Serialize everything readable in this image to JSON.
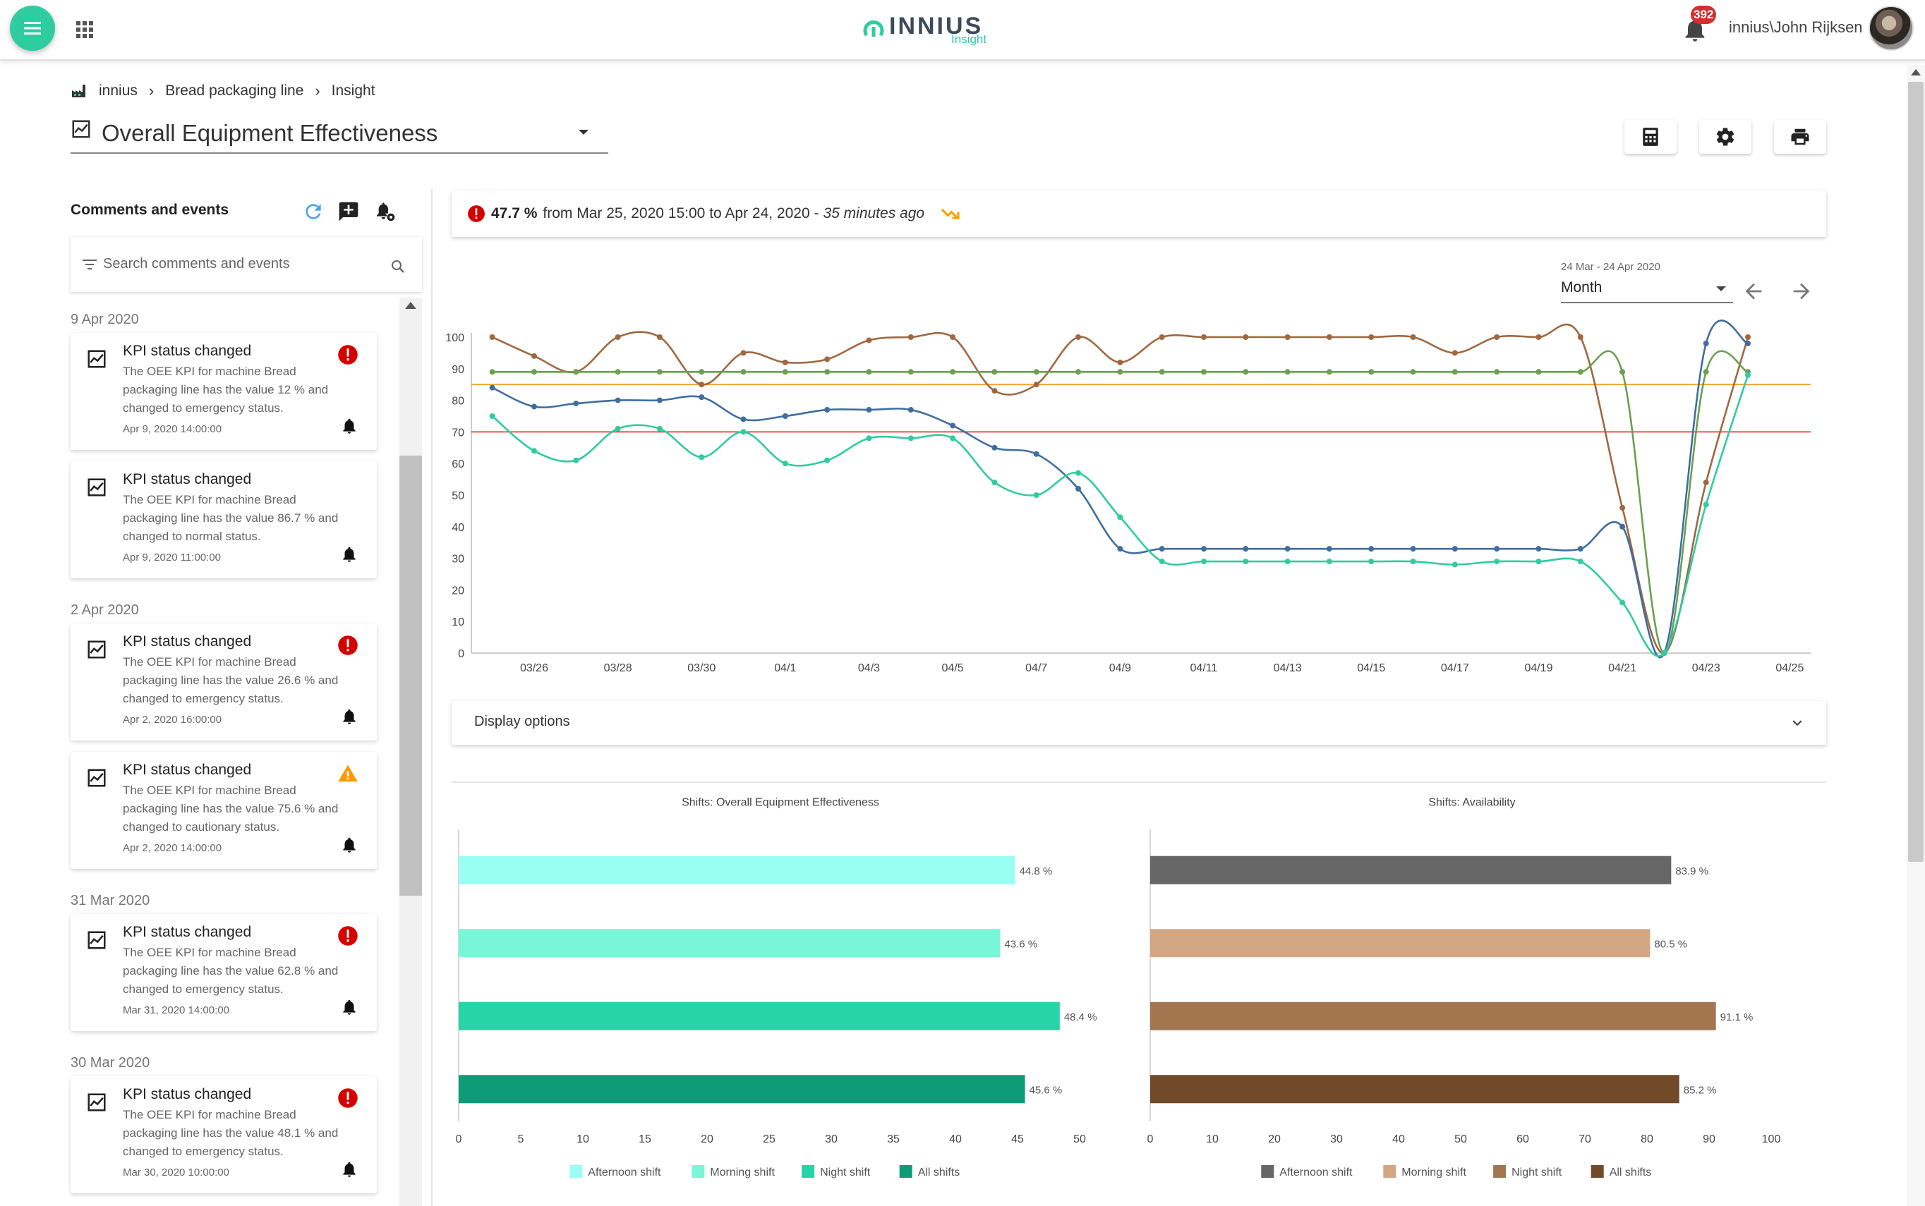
{
  "app": {
    "logo_text": "INNIUS",
    "logo_sub": "Insight",
    "notification_count": "392",
    "user": "innius\\John Rijksen"
  },
  "breadcrumb": [
    "innius",
    "Bread packaging line",
    "Insight"
  ],
  "page": {
    "title": "Overall Equipment Effectiveness"
  },
  "icons": {
    "menu": "menu-icon",
    "apps": "apps-grid-icon",
    "notifications": "bell-icon",
    "calculator": "calculator-icon",
    "settings": "gear-icon",
    "print": "printer-icon",
    "refresh": "refresh-icon",
    "add_comment": "add-comment-icon",
    "notification_settings": "bell-settings-icon",
    "filter": "filter-icon",
    "search": "search-icon",
    "event_chart": "chart-line-icon",
    "emergency": "error-circle-icon",
    "cautionary": "warning-triangle-icon",
    "trend": "trending-down-icon"
  },
  "colors": {
    "accent": "#2ecc9f",
    "emergency": "#d50000",
    "cautionary": "#ff9800",
    "trend": "#ffa000"
  },
  "comments": {
    "title": "Comments and events",
    "search_placeholder": "Search comments and events",
    "groups": [
      {
        "date": "9 Apr 2020",
        "events": [
          {
            "title": "KPI status changed",
            "text": "The OEE KPI for machine Bread packaging line has the value 12 % and changed to emergency status.",
            "timestamp": "Apr 9, 2020 14:00:00",
            "status": "emergency"
          },
          {
            "title": "KPI status changed",
            "text": "The OEE KPI for machine Bread packaging line has the value 86.7 % and changed to normal status.",
            "timestamp": "Apr 9, 2020 11:00:00",
            "status": "normal"
          }
        ]
      },
      {
        "date": "2 Apr 2020",
        "events": [
          {
            "title": "KPI status changed",
            "text": "The OEE KPI for machine Bread packaging line has the value 26.6 % and changed to emergency status.",
            "timestamp": "Apr 2, 2020 16:00:00",
            "status": "emergency"
          },
          {
            "title": "KPI status changed",
            "text": "The OEE KPI for machine Bread packaging line has the value 75.6 % and changed to cautionary status.",
            "timestamp": "Apr 2, 2020 14:00:00",
            "status": "cautionary"
          }
        ]
      },
      {
        "date": "31 Mar 2020",
        "events": [
          {
            "title": "KPI status changed",
            "text": "The OEE KPI for machine Bread packaging line has the value 62.8 % and changed to emergency status.",
            "timestamp": "Mar 31, 2020 14:00:00",
            "status": "emergency"
          }
        ]
      },
      {
        "date": "30 Mar 2020",
        "events": [
          {
            "title": "KPI status changed",
            "text": "The OEE KPI for machine Bread packaging line has the value 48.1 % and changed to emergency status.",
            "timestamp": "Mar 30, 2020 10:00:00",
            "status": "emergency"
          }
        ]
      }
    ]
  },
  "kpi": {
    "value": "47.7 %",
    "from_text": "from Mar 25, 2020 15:00 to Apr 24, 2020 -",
    "ago": "35 minutes ago"
  },
  "period": {
    "range": "24 Mar - 24 Apr 2020",
    "selected": "Month"
  },
  "display_options_label": "Display options",
  "chart_data": [
    {
      "type": "line",
      "ylim": [
        0,
        100
      ],
      "yticks": [
        0,
        10,
        20,
        30,
        40,
        50,
        60,
        70,
        80,
        90,
        100
      ],
      "x_day_range": [
        -1.5,
        30.5
      ],
      "x_ticks": [
        {
          "label": "03/26",
          "day": 0
        },
        {
          "label": "03/28",
          "day": 2
        },
        {
          "label": "03/30",
          "day": 4
        },
        {
          "label": "04/1",
          "day": 6
        },
        {
          "label": "04/3",
          "day": 8
        },
        {
          "label": "04/5",
          "day": 10
        },
        {
          "label": "04/7",
          "day": 12
        },
        {
          "label": "04/9",
          "day": 14
        },
        {
          "label": "04/11",
          "day": 16
        },
        {
          "label": "04/13",
          "day": 18
        },
        {
          "label": "04/15",
          "day": 20
        },
        {
          "label": "04/17",
          "day": 22
        },
        {
          "label": "04/19",
          "day": 24
        },
        {
          "label": "04/21",
          "day": 26
        },
        {
          "label": "04/23",
          "day": 28
        },
        {
          "label": "04/25",
          "day": 30
        }
      ],
      "reference_lines": [
        {
          "value": 85,
          "color": "#f0a030"
        },
        {
          "value": 70,
          "color": "#e53935"
        }
      ],
      "series": [
        {
          "color": "#a06840",
          "x": [
            -1,
            0,
            1,
            2,
            3,
            4,
            5,
            6,
            7,
            8,
            9,
            10,
            11,
            12,
            13,
            14,
            15,
            16,
            17,
            18,
            19,
            20,
            21,
            22,
            23,
            24,
            25,
            26,
            27,
            28,
            29
          ],
          "y": [
            100,
            94,
            89,
            100,
            100,
            85,
            95,
            92,
            93,
            99,
            100,
            100,
            83,
            85,
            100,
            92,
            100,
            100,
            100,
            100,
            100,
            100,
            100,
            95,
            100,
            100,
            100,
            46,
            0,
            54,
            100
          ]
        },
        {
          "color": "#6aa050",
          "x": [
            -1,
            0,
            1,
            2,
            3,
            4,
            5,
            6,
            7,
            8,
            9,
            10,
            11,
            12,
            13,
            14,
            15,
            16,
            17,
            18,
            19,
            20,
            21,
            22,
            23,
            24,
            25,
            26,
            27,
            28,
            29
          ],
          "y": [
            89,
            89,
            89,
            89,
            89,
            89,
            89,
            89,
            89,
            89,
            89,
            89,
            89,
            89,
            89,
            89,
            89,
            89,
            89,
            89,
            89,
            89,
            89,
            89,
            89,
            89,
            89,
            89,
            0,
            89,
            89
          ]
        },
        {
          "color": "#3f6e9e",
          "x": [
            -1,
            0,
            1,
            2,
            3,
            4,
            5,
            6,
            7,
            8,
            9,
            10,
            11,
            12,
            13,
            14,
            15,
            16,
            17,
            18,
            19,
            20,
            21,
            22,
            23,
            24,
            25,
            26,
            27,
            28,
            29
          ],
          "y": [
            84,
            78,
            79,
            80,
            80,
            81,
            74,
            75,
            77,
            77,
            77,
            72,
            65,
            63,
            52,
            33,
            33,
            33,
            33,
            33,
            33,
            33,
            33,
            33,
            33,
            33,
            33,
            40,
            0,
            98,
            98
          ]
        },
        {
          "color": "#2ecc9f",
          "x": [
            -1,
            0,
            1,
            2,
            3,
            4,
            5,
            6,
            7,
            8,
            9,
            10,
            11,
            12,
            13,
            14,
            15,
            16,
            17,
            18,
            19,
            20,
            21,
            22,
            23,
            24,
            25,
            26,
            27,
            28,
            29
          ],
          "y": [
            75,
            64,
            61,
            71,
            71,
            62,
            70,
            60,
            61,
            68,
            68,
            68,
            54,
            50,
            57,
            43,
            29,
            29,
            29,
            29,
            29,
            29,
            29,
            28,
            29,
            29,
            29,
            16,
            0,
            47,
            88
          ]
        }
      ]
    },
    {
      "type": "bar",
      "orientation": "horizontal",
      "title": "Shifts: Overall Equipment Effectiveness",
      "categories": [
        "Afternoon shift",
        "Morning shift",
        "Night shift",
        "All shifts"
      ],
      "values": [
        44.8,
        43.6,
        48.4,
        45.6
      ],
      "labels": [
        "44.8 %",
        "43.6 %",
        "48.4 %",
        "45.6 %"
      ],
      "colors": [
        "#99fff5",
        "#79f5d8",
        "#27d4a8",
        "#0e9c78"
      ],
      "xlim": [
        0,
        50
      ],
      "xticks": [
        0,
        5,
        10,
        15,
        20,
        25,
        30,
        35,
        40,
        45,
        50
      ]
    },
    {
      "type": "bar",
      "orientation": "horizontal",
      "title": "Shifts: Availability",
      "categories": [
        "Afternoon shift",
        "Morning shift",
        "Night shift",
        "All shifts"
      ],
      "values": [
        83.9,
        80.5,
        91.1,
        85.2
      ],
      "labels": [
        "83.9 %",
        "80.5 %",
        "91.1 %",
        "85.2 %"
      ],
      "colors": [
        "#666666",
        "#d3a783",
        "#a37650",
        "#714a2a"
      ],
      "xlim": [
        0,
        100
      ],
      "xticks": [
        0,
        10,
        20,
        30,
        40,
        50,
        60,
        70,
        80,
        90,
        100
      ]
    }
  ]
}
